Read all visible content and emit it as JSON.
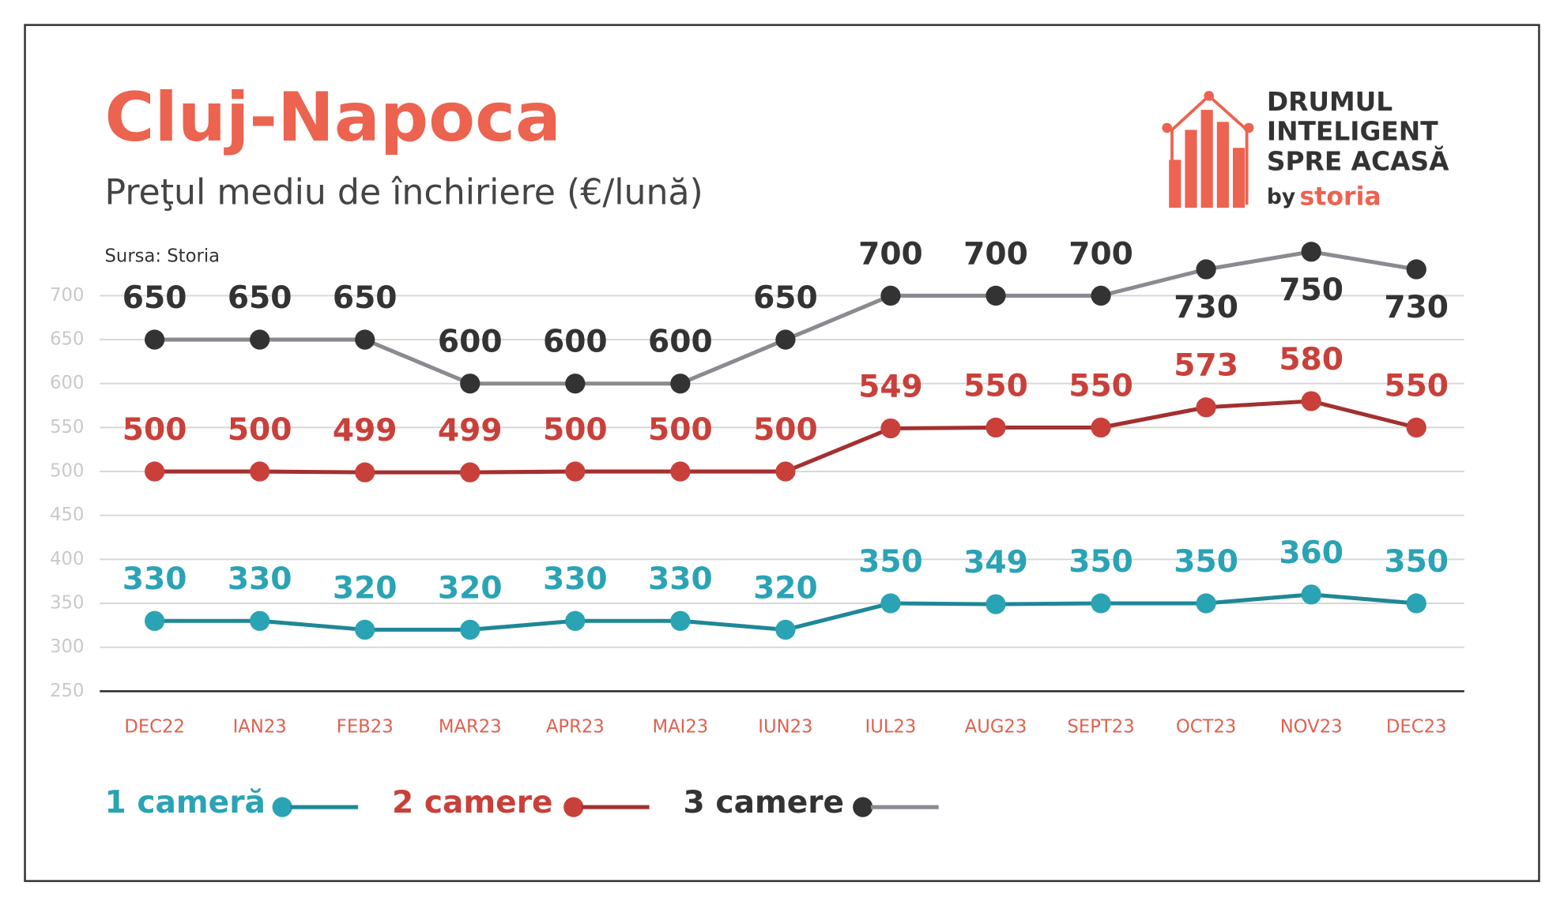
{
  "chart_data": {
    "type": "line",
    "title": "Cluj-Napoca",
    "subtitle": "Preţul mediu de închiriere (€/lună)",
    "source": "Sursa: Storia",
    "categories": [
      "DEC22",
      "IAN23",
      "FEB23",
      "MAR23",
      "APR23",
      "MAI23",
      "IUN23",
      "IUL23",
      "AUG23",
      "SEPT23",
      "OCT23",
      "NOV23",
      "DEC23"
    ],
    "series": [
      {
        "name": "1 cameră",
        "color": "#2aa3b5",
        "line_color": "#1f8796",
        "values": [
          330,
          330,
          320,
          320,
          330,
          330,
          320,
          350,
          349,
          350,
          350,
          360,
          350
        ]
      },
      {
        "name": "2 camere",
        "color": "#c9403a",
        "line_color": "#a33030",
        "values": [
          500,
          500,
          499,
          499,
          500,
          500,
          500,
          549,
          550,
          550,
          573,
          580,
          550
        ]
      },
      {
        "name": "3 camere",
        "color": "#333333",
        "line_color": "#8c8a90",
        "values": [
          650,
          650,
          650,
          600,
          600,
          600,
          650,
          700,
          700,
          700,
          730,
          750,
          730
        ]
      }
    ],
    "ylim": [
      250,
      750
    ],
    "yticks": [
      250,
      300,
      350,
      400,
      450,
      500,
      550,
      600,
      650,
      700
    ],
    "grid": true
  },
  "logo": {
    "lines": [
      "DRUMUL",
      "INTELIGENT",
      "SPRE ACASĂ"
    ],
    "by": "by",
    "brand": "storia"
  }
}
